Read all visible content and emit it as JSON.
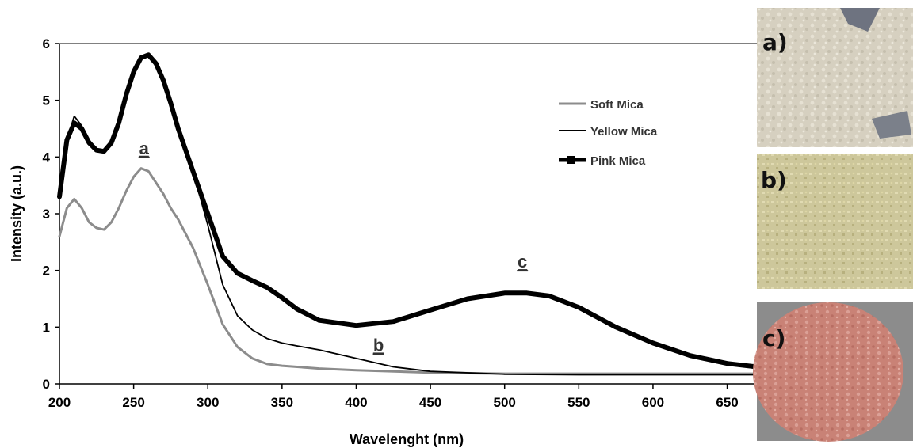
{
  "chart_data": {
    "type": "line",
    "title": "",
    "xlabel": "Wavelenght (nm)",
    "ylabel": "Intensity (a.u.)",
    "xlim": [
      200,
      670
    ],
    "ylim": [
      0,
      6
    ],
    "xticks": [
      200,
      250,
      300,
      350,
      400,
      450,
      500,
      550,
      600,
      650
    ],
    "yticks": [
      0,
      1,
      2,
      3,
      4,
      5,
      6
    ],
    "grid": false,
    "legend_position": "top-right",
    "series": [
      {
        "name": "Soft Mica",
        "color": "#8c8c8c",
        "x": [
          200,
          205,
          210,
          215,
          220,
          225,
          230,
          235,
          240,
          245,
          250,
          255,
          260,
          265,
          270,
          275,
          280,
          290,
          300,
          310,
          320,
          330,
          340,
          350,
          375,
          400,
          450,
          500,
          550,
          600,
          650,
          670
        ],
        "y": [
          2.6,
          3.1,
          3.26,
          3.1,
          2.85,
          2.75,
          2.72,
          2.85,
          3.1,
          3.4,
          3.65,
          3.8,
          3.75,
          3.55,
          3.35,
          3.1,
          2.9,
          2.4,
          1.75,
          1.05,
          0.65,
          0.45,
          0.35,
          0.32,
          0.27,
          0.24,
          0.2,
          0.18,
          0.18,
          0.18,
          0.18,
          0.18
        ]
      },
      {
        "name": "Yellow Mica",
        "color": "#000000",
        "x": [
          200,
          205,
          210,
          215,
          220,
          225,
          230,
          235,
          240,
          245,
          250,
          255,
          260,
          265,
          270,
          275,
          280,
          290,
          300,
          310,
          320,
          330,
          340,
          350,
          360,
          375,
          400,
          425,
          450,
          500,
          550,
          600,
          650,
          670
        ],
        "y": [
          3.3,
          4.3,
          4.72,
          4.55,
          4.3,
          4.15,
          4.1,
          4.25,
          4.6,
          5.1,
          5.5,
          5.75,
          5.8,
          5.65,
          5.35,
          4.95,
          4.5,
          3.75,
          2.8,
          1.75,
          1.2,
          0.95,
          0.8,
          0.72,
          0.67,
          0.6,
          0.45,
          0.3,
          0.22,
          0.17,
          0.16,
          0.16,
          0.16,
          0.16
        ]
      },
      {
        "name": "Pink Mica",
        "color": "#000000",
        "x": [
          200,
          205,
          210,
          215,
          220,
          225,
          230,
          235,
          240,
          245,
          250,
          255,
          260,
          265,
          270,
          275,
          280,
          290,
          300,
          310,
          320,
          330,
          340,
          350,
          360,
          375,
          400,
          425,
          450,
          475,
          500,
          515,
          530,
          550,
          575,
          600,
          625,
          650,
          670
        ],
        "y": [
          3.3,
          4.3,
          4.6,
          4.5,
          4.25,
          4.12,
          4.1,
          4.25,
          4.6,
          5.1,
          5.5,
          5.75,
          5.8,
          5.65,
          5.35,
          4.95,
          4.5,
          3.75,
          3.0,
          2.25,
          1.95,
          1.82,
          1.7,
          1.52,
          1.32,
          1.12,
          1.03,
          1.1,
          1.3,
          1.5,
          1.6,
          1.6,
          1.55,
          1.35,
          1.0,
          0.72,
          0.5,
          0.36,
          0.3
        ]
      }
    ],
    "annotations": [
      {
        "text": "a",
        "x": 257,
        "y": 4.05
      },
      {
        "text": "b",
        "x": 415,
        "y": 0.58
      },
      {
        "text": "c",
        "x": 512,
        "y": 2.05
      }
    ]
  },
  "photos": [
    {
      "label": "a)",
      "description_color": "#d8d2c2"
    },
    {
      "label": "b)",
      "description_color": "#cfc99c"
    },
    {
      "label": "c)",
      "description_color": "#c98479"
    }
  ]
}
